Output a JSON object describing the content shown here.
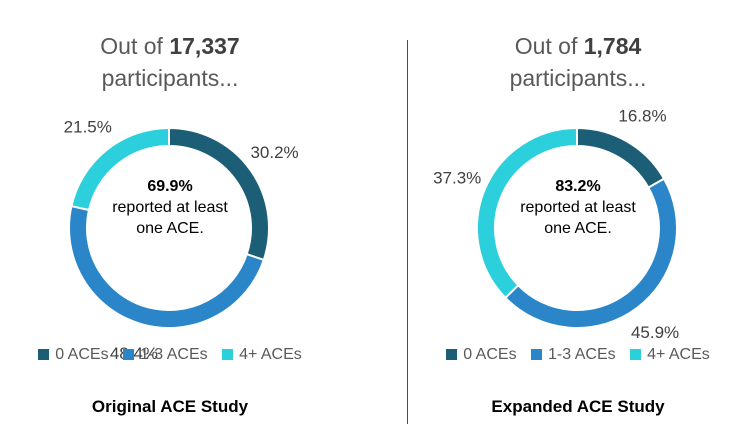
{
  "colors": {
    "zero": "#1b5e75",
    "one_three": "#2a86c9",
    "four_plus": "#2ccfdc"
  },
  "chart_data": [
    {
      "type": "pie",
      "headline_prefix": "Out of ",
      "headline_count": "17,337",
      "headline_suffix": "participants...",
      "center_pct": "69.9%",
      "center_desc": "reported at least one ACE.",
      "slices": [
        {
          "label": "0 ACEs",
          "value": 30.2,
          "text": "30.2%",
          "color": "#1b5e75"
        },
        {
          "label": "1-3 ACEs",
          "value": 48.4,
          "text": "48.4%",
          "color": "#2a86c9"
        },
        {
          "label": "4+ ACEs",
          "value": 21.5,
          "text": "21.5%",
          "color": "#2ccfdc"
        }
      ],
      "legend": [
        "0 ACEs",
        "1-3 ACEs",
        "4+ ACEs"
      ],
      "caption": "Original ACE Study"
    },
    {
      "type": "pie",
      "headline_prefix": "Out of ",
      "headline_count": "1,784",
      "headline_suffix": "participants...",
      "center_pct": "83.2%",
      "center_desc": "reported at least one ACE.",
      "slices": [
        {
          "label": "0 ACEs",
          "value": 16.8,
          "text": "16.8%",
          "color": "#1b5e75"
        },
        {
          "label": "1-3 ACEs",
          "value": 45.9,
          "text": "45.9%",
          "color": "#2a86c9"
        },
        {
          "label": "4+ ACEs",
          "value": 37.3,
          "text": "37.3%",
          "color": "#2ccfdc"
        }
      ],
      "legend": [
        "0 ACEs",
        "1-3 ACEs",
        "4+ ACEs"
      ],
      "caption": "Expanded ACE Study"
    }
  ]
}
